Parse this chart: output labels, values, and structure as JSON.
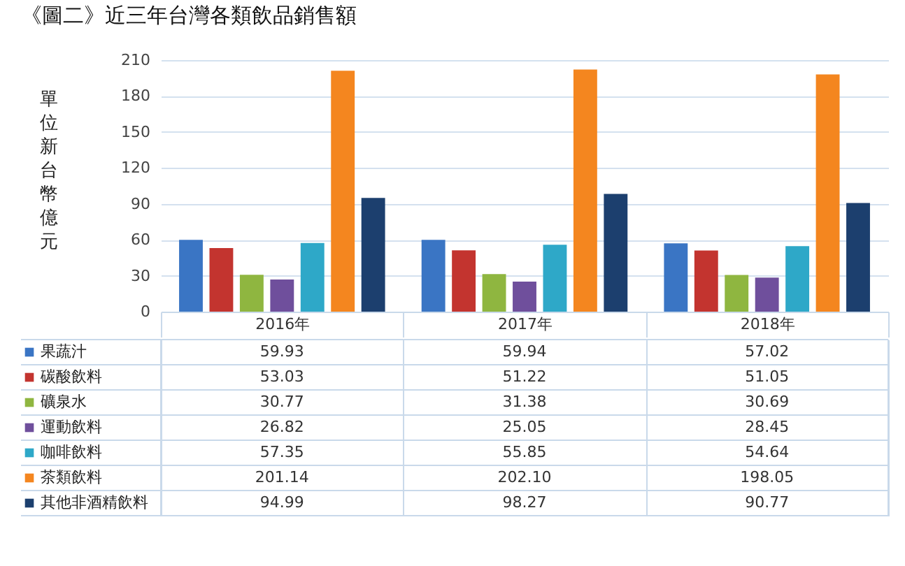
{
  "chart_data": {
    "type": "bar",
    "title": "《圖二》近三年台灣各類飲品銷售額",
    "ylabel": "單位新台幣億元",
    "categories": [
      "2016年",
      "2017年",
      "2018年"
    ],
    "series": [
      {
        "name": "果蔬汁",
        "color": "#3a75c4",
        "values": [
          59.93,
          59.94,
          57.02
        ],
        "value_labels": [
          "59.93",
          "59.94",
          "57.02"
        ]
      },
      {
        "name": "碳酸飲料",
        "color": "#c3342f",
        "values": [
          53.03,
          51.22,
          51.05
        ],
        "value_labels": [
          "53.03",
          "51.22",
          "51.05"
        ]
      },
      {
        "name": "礦泉水",
        "color": "#8fb640",
        "values": [
          30.77,
          31.38,
          30.69
        ],
        "value_labels": [
          "30.77",
          "31.38",
          "30.69"
        ]
      },
      {
        "name": "運動飲料",
        "color": "#6f4f9c",
        "values": [
          26.82,
          25.05,
          28.45
        ],
        "value_labels": [
          "26.82",
          "25.05",
          "28.45"
        ]
      },
      {
        "name": "咖啡飲料",
        "color": "#2ea8c8",
        "values": [
          57.35,
          55.85,
          54.64
        ],
        "value_labels": [
          "57.35",
          "55.85",
          "54.64"
        ]
      },
      {
        "name": "茶類飲料",
        "color": "#f4861f",
        "values": [
          201.14,
          202.1,
          198.05
        ],
        "value_labels": [
          "201.14",
          "202.10",
          "198.05"
        ]
      },
      {
        "name": "其他非酒精飲料",
        "color": "#1c3f6e",
        "values": [
          94.99,
          98.27,
          90.77
        ],
        "value_labels": [
          "94.99",
          "98.27",
          "90.77"
        ]
      }
    ],
    "ylim": [
      0,
      210
    ],
    "yticks": [
      0,
      30,
      60,
      90,
      120,
      150,
      180,
      210
    ],
    "grid": "y",
    "legend": "bottom"
  }
}
